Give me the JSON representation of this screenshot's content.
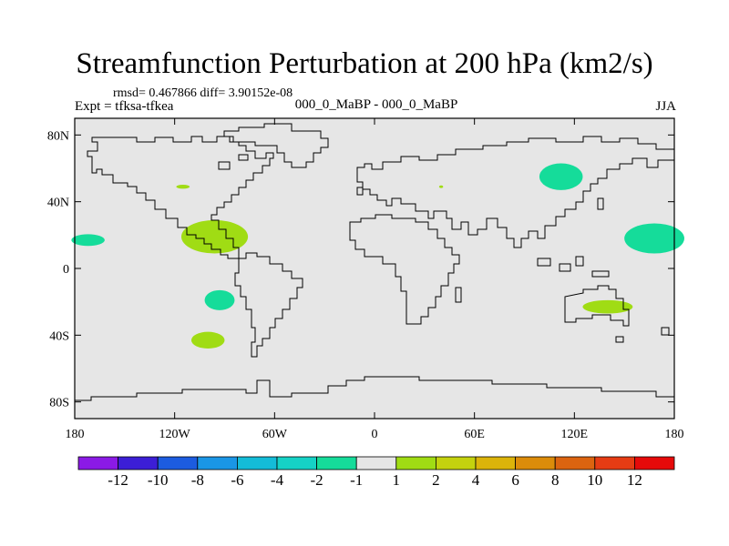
{
  "title": "Streamfunction Perturbation at 200 hPa (km2/s)",
  "stats": "rmsd= 0.467866 diff= 3.90152e-08",
  "experiment": "Expt = tfksa-tfkea",
  "subtitle": "000_0_MaBP - 000_0_MaBP",
  "season": "JJA",
  "map": {
    "projection": "cylindrical-equidistant",
    "lon_range": [
      -180,
      180
    ],
    "lat_range": [
      -90,
      90
    ],
    "background_color": "#e6e6e6",
    "lat_ticks": [
      {
        "value": 80,
        "label": "80N"
      },
      {
        "value": 40,
        "label": "40N"
      },
      {
        "value": 0,
        "label": "0"
      },
      {
        "value": -40,
        "label": "40S"
      },
      {
        "value": -80,
        "label": "80S"
      }
    ],
    "lon_ticks": [
      {
        "value": -180,
        "label": "180"
      },
      {
        "value": -120,
        "label": "120W"
      },
      {
        "value": -60,
        "label": "60W"
      },
      {
        "value": 0,
        "label": "0"
      },
      {
        "value": 60,
        "label": "60E"
      },
      {
        "value": 120,
        "label": "120E"
      },
      {
        "value": 180,
        "label": "180"
      }
    ],
    "anomalies": [
      {
        "name": "north-pacific-east-positive",
        "lon": -96,
        "lat": 19,
        "rlon": 20,
        "rlat": 10,
        "level": "1 to 2"
      },
      {
        "name": "gulf-of-mexico-positive-core",
        "lon": -90,
        "lat": 19,
        "rlon": 8,
        "rlat": 4,
        "level": "1 to 2"
      },
      {
        "name": "north-pacific-small-positive",
        "lon": -115,
        "lat": 49,
        "rlon": 4,
        "rlat": 1.2,
        "level": "1 to 2"
      },
      {
        "name": "southeast-pacific-negative",
        "lon": -93,
        "lat": -19,
        "rlon": 9,
        "rlat": 6,
        "level": "-2 to -1"
      },
      {
        "name": "south-pacific-positive",
        "lon": -100,
        "lat": -43,
        "rlon": 10,
        "rlat": 5,
        "level": "1 to 2"
      },
      {
        "name": "west-pacific-negative",
        "lon": 168,
        "lat": 18,
        "rlon": 18,
        "rlat": 9,
        "level": "-2 to -1"
      },
      {
        "name": "central-pacific-negative",
        "lon": -172,
        "lat": 17,
        "rlon": 10,
        "rlat": 3.5,
        "level": "-2 to -1"
      },
      {
        "name": "east-asia-negative",
        "lon": 112,
        "lat": 55,
        "rlon": 13,
        "rlat": 8,
        "level": "-2 to -1"
      },
      {
        "name": "australia-positive",
        "lon": 140,
        "lat": -23,
        "rlon": 15,
        "rlat": 4,
        "level": "1 to 2"
      },
      {
        "name": "africa-tiny-positive",
        "lon": 40,
        "lat": 49,
        "rlon": 1.2,
        "rlat": 0.8,
        "level": "1 to 2"
      }
    ]
  },
  "colorbar": {
    "colors": [
      "#8b1ae6",
      "#3c1ed6",
      "#1c5ce0",
      "#1a96e6",
      "#14bcd8",
      "#15d2c6",
      "#15dc9a",
      "#e6e6e6",
      "#a0dc14",
      "#c4d20e",
      "#dcb40a",
      "#dc8c0a",
      "#dc6410",
      "#e63c14",
      "#e60a0a"
    ],
    "labels": [
      "-12",
      "-10",
      "-8",
      "-6",
      "-4",
      "-2",
      "-1",
      "1",
      "2",
      "4",
      "6",
      "8",
      "10",
      "12"
    ]
  },
  "level_colors": {
    "-2 to -1": "#15dc9a",
    "1 to 2": "#a0dc14"
  }
}
